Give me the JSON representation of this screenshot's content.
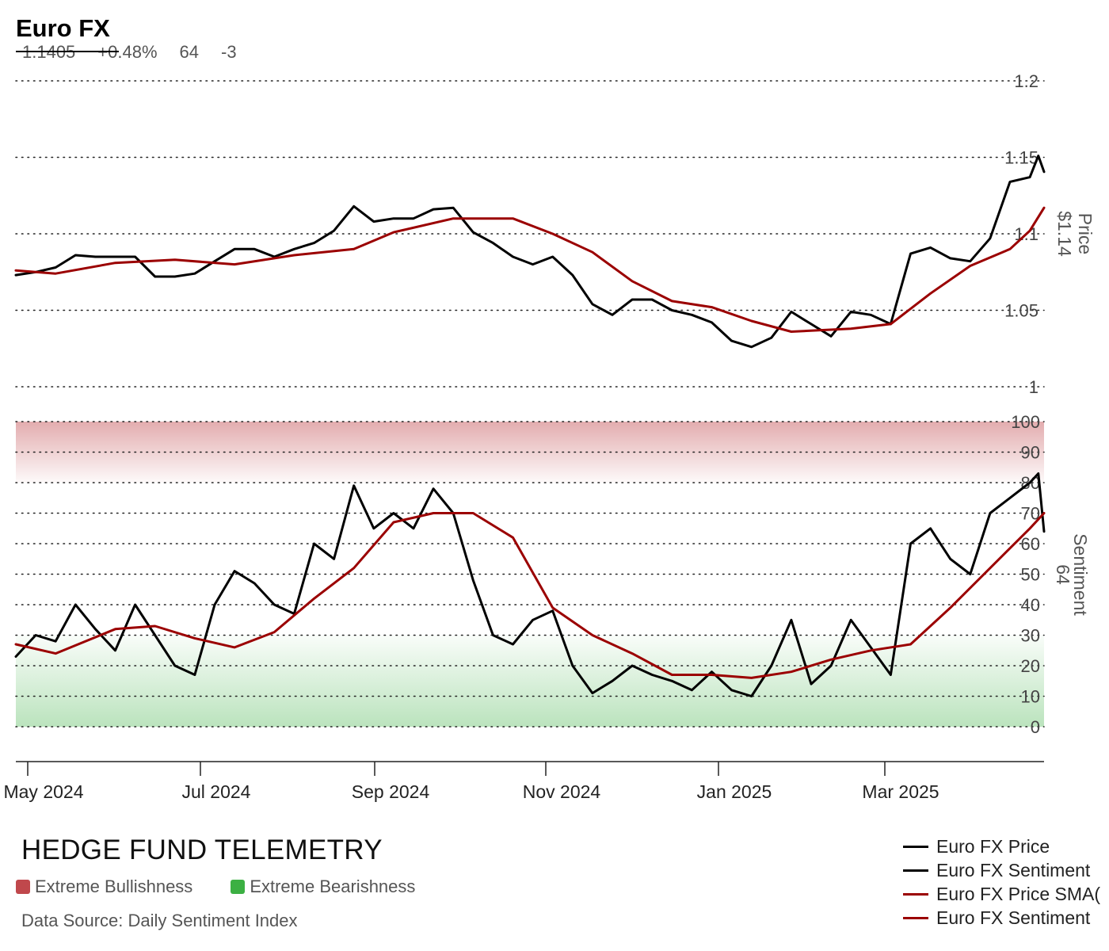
{
  "header": {
    "title": "Euro FX",
    "price": "1.1405",
    "change": "+0.48%",
    "sentiment": "64",
    "sentiment_change": "-3"
  },
  "footer": {
    "brand": "HEDGE FUND TELEMETRY",
    "zone_bull_label": "Extreme Bullishness",
    "zone_bear_label": "Extreme Bearishness",
    "source": "Data Source: Daily Sentiment Index"
  },
  "legend": [
    {
      "label": "Euro FX Price",
      "color": "#000000"
    },
    {
      "label": "Euro FX Sentiment",
      "color": "#000000"
    },
    {
      "label": "Euro FX Price SMA(",
      "color": "#9b0000"
    },
    {
      "label": "Euro FX Sentiment",
      "color": "#9b0000"
    }
  ],
  "colors": {
    "price_line": "#000000",
    "sma_line": "#9b0000",
    "zone_bullish": "#c0484c",
    "zone_bearish": "#3cb043"
  },
  "chart_data": [
    {
      "type": "line",
      "name": "price-panel",
      "x_ticks": [
        "May 2024",
        "Jul 2024",
        "Sep 2024",
        "Nov 2024",
        "Jan 2025",
        "Mar 2025"
      ],
      "x_range": [
        "2024-04-26",
        "2025-04-23"
      ],
      "y_ticks": [
        1,
        1.05,
        1.1,
        1.15,
        1.2
      ],
      "ylim": [
        1.0,
        1.2
      ],
      "ylabel": "Price",
      "last_label": "$1.14",
      "grid": true,
      "series": [
        {
          "name": "Euro FX Price",
          "color": "#000000",
          "points": [
            [
              "2024-04-26",
              1.073
            ],
            [
              "2024-05-03",
              1.075
            ],
            [
              "2024-05-10",
              1.078
            ],
            [
              "2024-05-17",
              1.086
            ],
            [
              "2024-05-24",
              1.085
            ],
            [
              "2024-05-31",
              1.085
            ],
            [
              "2024-06-07",
              1.085
            ],
            [
              "2024-06-14",
              1.072
            ],
            [
              "2024-06-21",
              1.072
            ],
            [
              "2024-06-28",
              1.074
            ],
            [
              "2024-07-05",
              1.082
            ],
            [
              "2024-07-12",
              1.09
            ],
            [
              "2024-07-19",
              1.09
            ],
            [
              "2024-07-26",
              1.085
            ],
            [
              "2024-08-02",
              1.09
            ],
            [
              "2024-08-09",
              1.094
            ],
            [
              "2024-08-16",
              1.102
            ],
            [
              "2024-08-23",
              1.118
            ],
            [
              "2024-08-30",
              1.108
            ],
            [
              "2024-09-06",
              1.11
            ],
            [
              "2024-09-13",
              1.11
            ],
            [
              "2024-09-20",
              1.116
            ],
            [
              "2024-09-27",
              1.117
            ],
            [
              "2024-10-04",
              1.101
            ],
            [
              "2024-10-11",
              1.094
            ],
            [
              "2024-10-18",
              1.085
            ],
            [
              "2024-10-25",
              1.08
            ],
            [
              "2024-11-01",
              1.085
            ],
            [
              "2024-11-08",
              1.073
            ],
            [
              "2024-11-15",
              1.054
            ],
            [
              "2024-11-22",
              1.047
            ],
            [
              "2024-11-29",
              1.057
            ],
            [
              "2024-12-06",
              1.057
            ],
            [
              "2024-12-13",
              1.05
            ],
            [
              "2024-12-20",
              1.047
            ],
            [
              "2024-12-27",
              1.042
            ],
            [
              "2025-01-03",
              1.03
            ],
            [
              "2025-01-10",
              1.026
            ],
            [
              "2025-01-17",
              1.032
            ],
            [
              "2025-01-24",
              1.049
            ],
            [
              "2025-01-31",
              1.041
            ],
            [
              "2025-02-07",
              1.033
            ],
            [
              "2025-02-14",
              1.049
            ],
            [
              "2025-02-21",
              1.047
            ],
            [
              "2025-02-28",
              1.041
            ],
            [
              "2025-03-07",
              1.087
            ],
            [
              "2025-03-14",
              1.091
            ],
            [
              "2025-03-21",
              1.084
            ],
            [
              "2025-03-28",
              1.082
            ],
            [
              "2025-04-04",
              1.097
            ],
            [
              "2025-04-11",
              1.134
            ],
            [
              "2025-04-18",
              1.137
            ],
            [
              "2025-04-21",
              1.151
            ],
            [
              "2025-04-23",
              1.1405
            ]
          ]
        },
        {
          "name": "Euro FX Price SMA(",
          "color": "#9b0000",
          "points": [
            [
              "2024-04-26",
              1.076
            ],
            [
              "2024-05-10",
              1.074
            ],
            [
              "2024-05-31",
              1.081
            ],
            [
              "2024-06-21",
              1.083
            ],
            [
              "2024-07-12",
              1.08
            ],
            [
              "2024-08-02",
              1.086
            ],
            [
              "2024-08-23",
              1.09
            ],
            [
              "2024-09-06",
              1.101
            ],
            [
              "2024-09-27",
              1.11
            ],
            [
              "2024-10-18",
              1.11
            ],
            [
              "2024-11-01",
              1.1
            ],
            [
              "2024-11-15",
              1.088
            ],
            [
              "2024-11-29",
              1.069
            ],
            [
              "2024-12-13",
              1.056
            ],
            [
              "2024-12-27",
              1.052
            ],
            [
              "2025-01-10",
              1.043
            ],
            [
              "2025-01-24",
              1.036
            ],
            [
              "2025-02-14",
              1.038
            ],
            [
              "2025-02-28",
              1.041
            ],
            [
              "2025-03-14",
              1.061
            ],
            [
              "2025-03-28",
              1.079
            ],
            [
              "2025-04-11",
              1.09
            ],
            [
              "2025-04-18",
              1.102
            ],
            [
              "2025-04-23",
              1.117
            ]
          ]
        }
      ]
    },
    {
      "type": "line",
      "name": "sentiment-panel",
      "x_range": [
        "2024-04-26",
        "2025-04-23"
      ],
      "y_ticks": [
        0,
        10,
        20,
        30,
        40,
        50,
        60,
        70,
        80,
        90,
        100
      ],
      "ylim": [
        0,
        100
      ],
      "ylabel": "Sentiment",
      "last_label": "64",
      "zones": [
        {
          "from": 80,
          "to": 100,
          "label": "Extreme Bullishness"
        },
        {
          "from": 0,
          "to": 30,
          "label": "Extreme Bearishness"
        }
      ],
      "grid": true,
      "series": [
        {
          "name": "Euro FX Sentiment",
          "color": "#000000",
          "points": [
            [
              "2024-04-26",
              23
            ],
            [
              "2024-05-03",
              30
            ],
            [
              "2024-05-10",
              28
            ],
            [
              "2024-05-17",
              40
            ],
            [
              "2024-05-24",
              32
            ],
            [
              "2024-05-31",
              25
            ],
            [
              "2024-06-07",
              40
            ],
            [
              "2024-06-14",
              30
            ],
            [
              "2024-06-21",
              20
            ],
            [
              "2024-06-28",
              17
            ],
            [
              "2024-07-05",
              40
            ],
            [
              "2024-07-12",
              51
            ],
            [
              "2024-07-19",
              47
            ],
            [
              "2024-07-26",
              40
            ],
            [
              "2024-08-02",
              37
            ],
            [
              "2024-08-09",
              60
            ],
            [
              "2024-08-16",
              55
            ],
            [
              "2024-08-23",
              79
            ],
            [
              "2024-08-30",
              65
            ],
            [
              "2024-09-06",
              70
            ],
            [
              "2024-09-13",
              65
            ],
            [
              "2024-09-20",
              78
            ],
            [
              "2024-09-27",
              70
            ],
            [
              "2024-10-04",
              48
            ],
            [
              "2024-10-11",
              30
            ],
            [
              "2024-10-18",
              27
            ],
            [
              "2024-10-25",
              35
            ],
            [
              "2024-11-01",
              38
            ],
            [
              "2024-11-08",
              20
            ],
            [
              "2024-11-15",
              11
            ],
            [
              "2024-11-22",
              15
            ],
            [
              "2024-11-29",
              20
            ],
            [
              "2024-12-06",
              17
            ],
            [
              "2024-12-13",
              15
            ],
            [
              "2024-12-20",
              12
            ],
            [
              "2024-12-27",
              18
            ],
            [
              "2025-01-03",
              12
            ],
            [
              "2025-01-10",
              10
            ],
            [
              "2025-01-17",
              20
            ],
            [
              "2025-01-24",
              35
            ],
            [
              "2025-01-31",
              14
            ],
            [
              "2025-02-07",
              20
            ],
            [
              "2025-02-14",
              35
            ],
            [
              "2025-02-21",
              26
            ],
            [
              "2025-02-28",
              17
            ],
            [
              "2025-03-07",
              60
            ],
            [
              "2025-03-14",
              65
            ],
            [
              "2025-03-21",
              55
            ],
            [
              "2025-03-28",
              50
            ],
            [
              "2025-04-04",
              70
            ],
            [
              "2025-04-11",
              75
            ],
            [
              "2025-04-18",
              80
            ],
            [
              "2025-04-21",
              83
            ],
            [
              "2025-04-23",
              64
            ]
          ]
        },
        {
          "name": "Euro FX Sentiment",
          "color": "#9b0000",
          "points": [
            [
              "2024-04-26",
              27
            ],
            [
              "2024-05-10",
              24
            ],
            [
              "2024-05-31",
              32
            ],
            [
              "2024-06-14",
              33
            ],
            [
              "2024-06-28",
              29
            ],
            [
              "2024-07-12",
              26
            ],
            [
              "2024-07-26",
              31
            ],
            [
              "2024-08-09",
              42
            ],
            [
              "2024-08-23",
              52
            ],
            [
              "2024-09-06",
              67
            ],
            [
              "2024-09-20",
              70
            ],
            [
              "2024-10-04",
              70
            ],
            [
              "2024-10-18",
              62
            ],
            [
              "2024-11-01",
              39
            ],
            [
              "2024-11-15",
              30
            ],
            [
              "2024-11-29",
              24
            ],
            [
              "2024-12-13",
              17
            ],
            [
              "2024-12-27",
              17
            ],
            [
              "2025-01-10",
              16
            ],
            [
              "2025-01-24",
              18
            ],
            [
              "2025-02-07",
              22
            ],
            [
              "2025-02-21",
              25
            ],
            [
              "2025-03-07",
              27
            ],
            [
              "2025-03-21",
              39
            ],
            [
              "2025-04-04",
              52
            ],
            [
              "2025-04-18",
              65
            ],
            [
              "2025-04-23",
              70
            ]
          ]
        }
      ]
    }
  ]
}
